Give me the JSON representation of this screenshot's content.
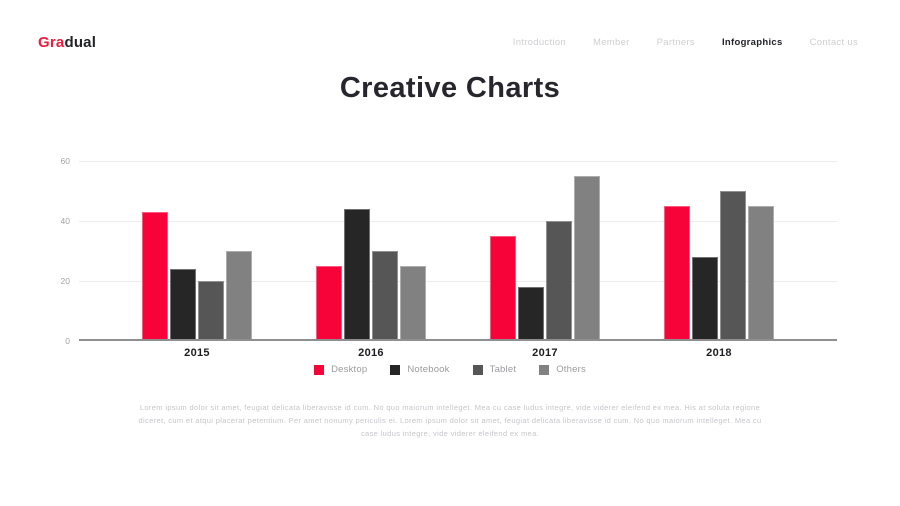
{
  "header": {
    "logo": {
      "accent": "Gra",
      "rest": "dual"
    },
    "nav": [
      {
        "label": "Introduction",
        "active": false
      },
      {
        "label": "Member",
        "active": false
      },
      {
        "label": "Partners",
        "active": false
      },
      {
        "label": "Infographics",
        "active": true
      },
      {
        "label": "Contact us",
        "active": false
      }
    ]
  },
  "title": "Creative Charts",
  "chart_data": {
    "type": "bar",
    "title": "Creative Charts",
    "categories": [
      "2015",
      "2016",
      "2017",
      "2018"
    ],
    "series": [
      {
        "name": "Desktop",
        "color": "#f70339",
        "values": [
          43,
          25,
          35,
          45
        ]
      },
      {
        "name": "Notebook",
        "color": "#262626",
        "values": [
          24,
          44,
          18,
          28
        ]
      },
      {
        "name": "Tablet",
        "color": "#565656",
        "values": [
          20,
          30,
          40,
          50
        ]
      },
      {
        "name": "Others",
        "color": "#818181",
        "values": [
          30,
          25,
          55,
          45
        ]
      }
    ],
    "xlabel": "",
    "ylabel": "",
    "ylim": [
      0,
      60
    ],
    "yticks": [
      0,
      20,
      40,
      60
    ],
    "grid": true,
    "legend_position": "bottom"
  },
  "paragraph": {
    "lines": [
      "Lorem ipsum dolor sit amet, feugiat delicata liberavisse id cum. No quo maiorum intelleget. Mea cu case ludus integre, vide viderer eleifend ex mea. His at soluta regione",
      "diceret, cum et atqui placerat petentium. Per amet nonumy periculis ei. Lorem ipsum dolor sit amet, feugiat delicata liberavisse id cum. No quo maiorum intelleget. Mea cu",
      "case ludus integre, vide viderer eleifend ex mea."
    ]
  },
  "colors": {
    "accent": "#f70339",
    "logo_accent": "#ea1e3f",
    "nav_active": "#222327",
    "nav_inactive": "#cfcfd3",
    "gridline": "#ececec",
    "axis_line": "#8f8f8f",
    "tick_label": "#a3a3a7",
    "category_label": "#1d1d21",
    "legend_text": "#9b9b9f",
    "body_text": "#c6c6cc"
  }
}
